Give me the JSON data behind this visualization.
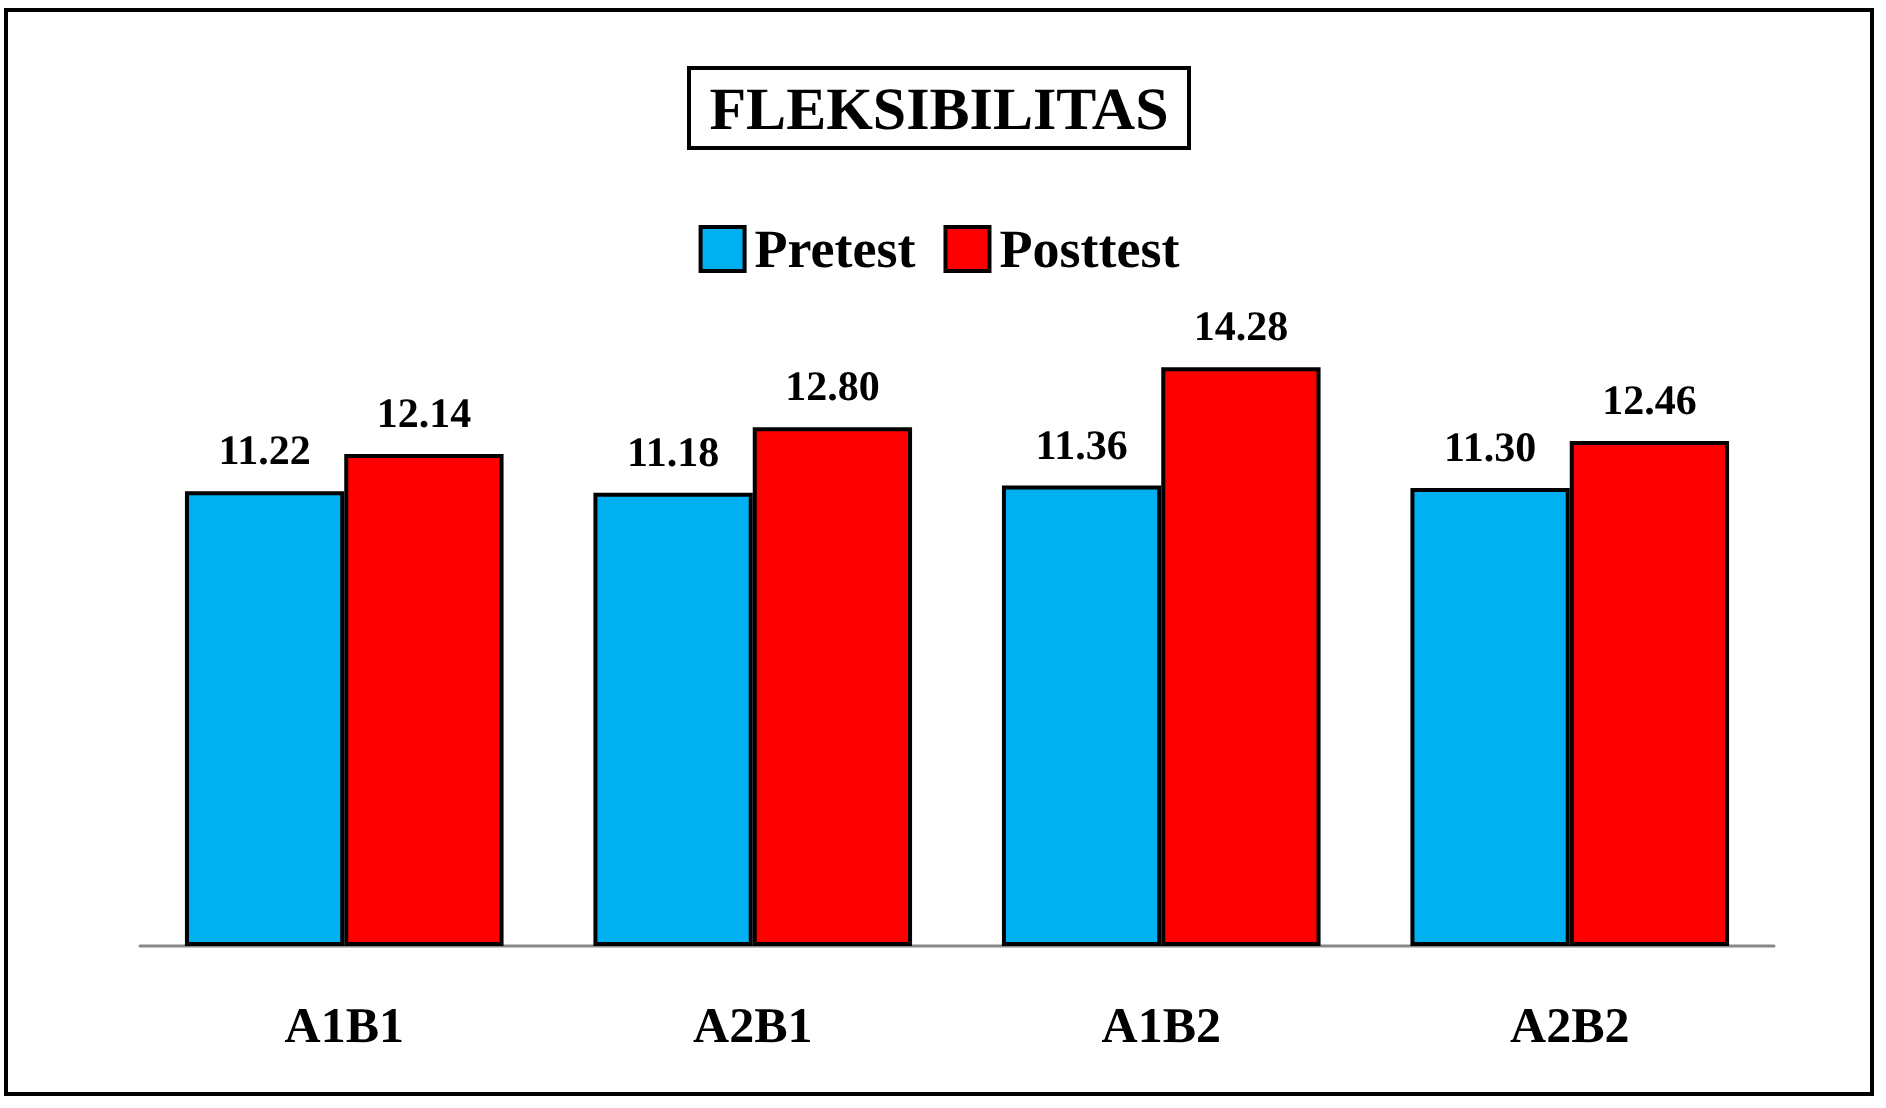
{
  "chart_data": {
    "type": "bar",
    "title": "FLEKSIBILITAS",
    "categories": [
      "A1B1",
      "A2B1",
      "A1B2",
      "A2B2"
    ],
    "series": [
      {
        "name": "Pretest",
        "color": "#00b0f0",
        "values": [
          11.22,
          11.18,
          11.36,
          11.3
        ],
        "value_labels": [
          "11.22",
          "11.18",
          "11.36",
          "11.30"
        ]
      },
      {
        "name": "Posttest",
        "color": "#ff0000",
        "values": [
          12.14,
          12.8,
          14.28,
          12.46
        ],
        "value_labels": [
          "12.14",
          "12.80",
          "14.28",
          "12.46"
        ]
      }
    ],
    "legend": "top",
    "grid": false
  }
}
